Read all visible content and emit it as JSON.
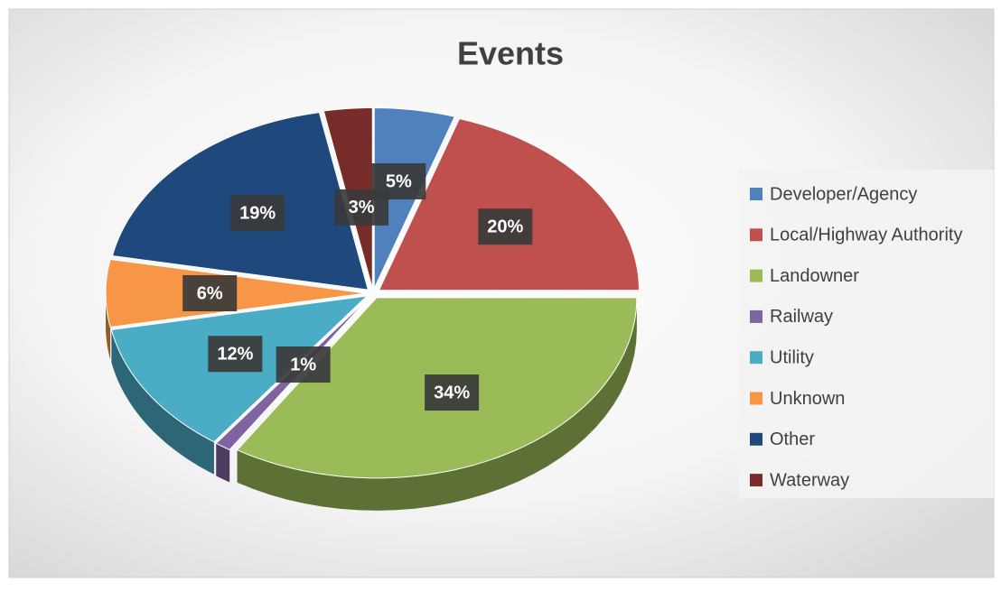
{
  "chart_data": {
    "type": "pie",
    "title": "Events",
    "categories": [
      "Developer/Agency",
      "Local/Highway Authority",
      "Landowner",
      "Railway",
      "Utility",
      "Unknown",
      "Other",
      "Waterway"
    ],
    "values": [
      5,
      20,
      34,
      1,
      12,
      6,
      19,
      3
    ],
    "value_labels": [
      "5%",
      "20%",
      "34%",
      "1%",
      "12%",
      "6%",
      "19%",
      "3%"
    ],
    "colors": [
      "#4f81bd",
      "#c0504d",
      "#9bbb59",
      "#8064a2",
      "#4bacc6",
      "#f79646",
      "#1f497d",
      "#772c2a"
    ],
    "legend": "right"
  }
}
